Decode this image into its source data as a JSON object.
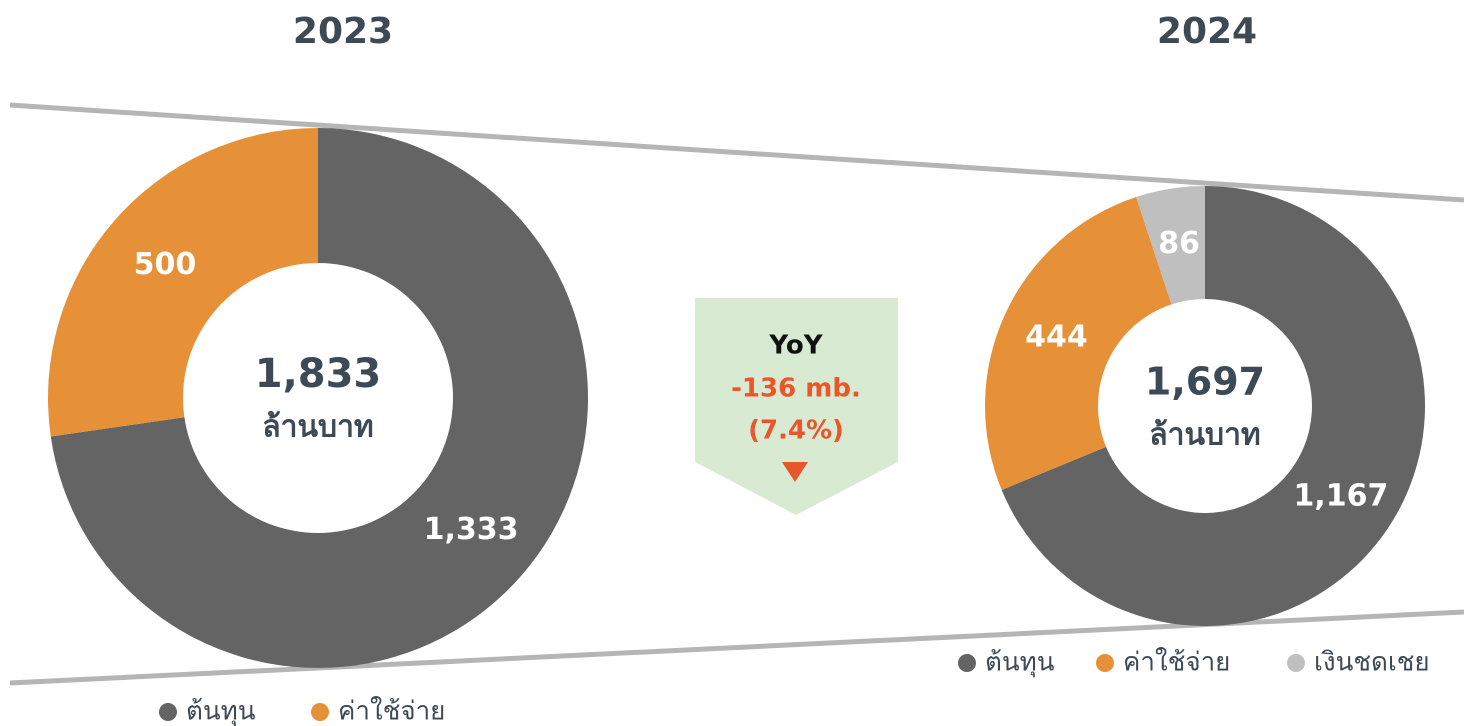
{
  "chart_data": [
    {
      "type": "donut",
      "title": "2023",
      "center_label": "1,833",
      "center_unit": "ล้านบาท",
      "categories": [
        "ต้นทุน",
        "ค่าใช้จ่าย"
      ],
      "values": [
        1333,
        500
      ],
      "value_labels": [
        "1,333",
        "500"
      ],
      "colors": [
        "#646464",
        "#e69138"
      ],
      "legend": "bottom"
    },
    {
      "type": "donut",
      "title": "2024",
      "center_label": "1,697",
      "center_unit": "ล้านบาท",
      "categories": [
        "ต้นทุน",
        "ค่าใช้จ่าย",
        "เงินชดเชย"
      ],
      "values": [
        1167,
        444,
        86
      ],
      "value_labels": [
        "1,167",
        "444",
        "86"
      ],
      "colors": [
        "#646464",
        "#e69138",
        "#bfbfbf"
      ],
      "legend": "bottom"
    }
  ],
  "yoy": {
    "title": "YoY",
    "change": "-136 mb.",
    "percent": "(7.4%)"
  }
}
